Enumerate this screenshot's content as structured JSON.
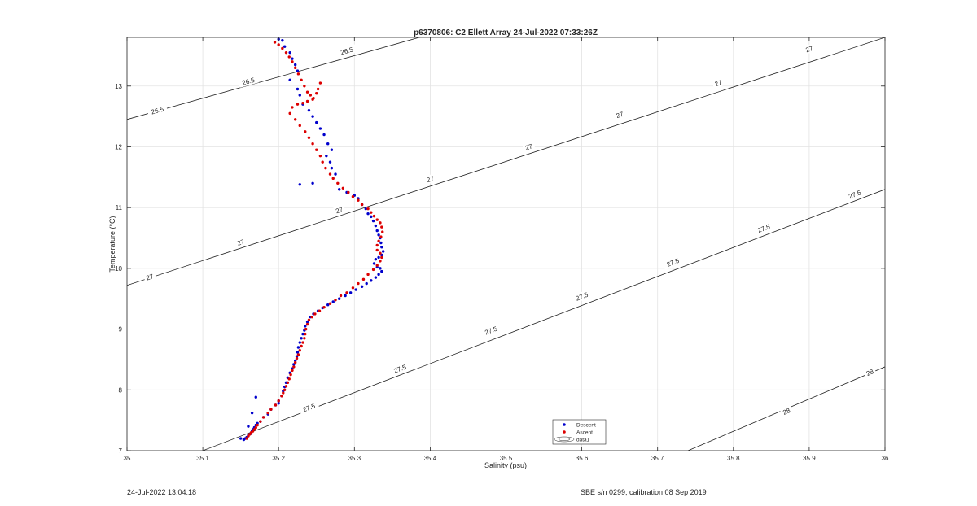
{
  "footer": {
    "left": "24-Jul-2022 13:04:18",
    "right": "SBE s/n 0299, calibration 08 Sep 2019"
  },
  "chart_data": {
    "type": "scatter",
    "title": "p6370806: C2 Ellett Array 24-Jul-2022 07:33:26Z",
    "xlabel": "Salinity (psu)",
    "ylabel": "Temperature (°C)",
    "xlim": [
      35,
      36
    ],
    "ylim": [
      7,
      13.8
    ],
    "xticks": [
      "35",
      "35.1",
      "35.2",
      "35.3",
      "35.4",
      "35.5",
      "35.6",
      "35.7",
      "35.8",
      "35.9",
      "36"
    ],
    "yticks": [
      "7",
      "8",
      "9",
      "10",
      "11",
      "12",
      "13"
    ],
    "grid": true,
    "legend": {
      "position": "bottom-center",
      "entries": [
        "Descent",
        "Ascent",
        "data1"
      ]
    },
    "colors": {
      "descent": "#0000cc",
      "ascent": "#dd0000",
      "contour": "#222222",
      "grid": "#e3e3e3"
    },
    "contours": {
      "levels": [
        {
          "value": "26.5",
          "x": [
            35.0,
            35.4
          ],
          "y": [
            12.45,
            13.85
          ]
        },
        {
          "value": "27",
          "x": [
            35.0,
            36.0
          ],
          "y": [
            9.72,
            13.8
          ]
        },
        {
          "value": "27.5",
          "x": [
            35.1,
            36.0
          ],
          "y": [
            7.0,
            11.3
          ]
        },
        {
          "value": "28",
          "x": [
            35.74,
            36.0
          ],
          "y": [
            7.0,
            8.38
          ]
        }
      ],
      "labels": [
        {
          "text": "26.5",
          "x": 35.04,
          "y": 12.6
        },
        {
          "text": "26.5",
          "x": 35.16,
          "y": 13.08
        },
        {
          "text": "26.5",
          "x": 35.29,
          "y": 13.58
        },
        {
          "text": "27",
          "x": 35.03,
          "y": 9.86
        },
        {
          "text": "27",
          "x": 35.15,
          "y": 10.43
        },
        {
          "text": "27",
          "x": 35.28,
          "y": 10.96
        },
        {
          "text": "27",
          "x": 35.4,
          "y": 11.47
        },
        {
          "text": "27",
          "x": 35.53,
          "y": 12.0
        },
        {
          "text": "27",
          "x": 35.65,
          "y": 12.53
        },
        {
          "text": "27",
          "x": 35.78,
          "y": 13.05
        },
        {
          "text": "27",
          "x": 35.9,
          "y": 13.61
        },
        {
          "text": "27.5",
          "x": 35.24,
          "y": 7.71
        },
        {
          "text": "27.5",
          "x": 35.36,
          "y": 8.35
        },
        {
          "text": "27.5",
          "x": 35.48,
          "y": 8.98
        },
        {
          "text": "27.5",
          "x": 35.6,
          "y": 9.54
        },
        {
          "text": "27.5",
          "x": 35.72,
          "y": 10.1
        },
        {
          "text": "27.5",
          "x": 35.84,
          "y": 10.66
        },
        {
          "text": "27.5",
          "x": 35.96,
          "y": 11.22
        },
        {
          "text": "28",
          "x": 35.87,
          "y": 7.65
        },
        {
          "text": "28",
          "x": 35.98,
          "y": 8.29
        }
      ]
    },
    "series": [
      {
        "name": "Descent",
        "x": [
          35.2,
          35.205,
          35.208,
          35.215,
          35.218,
          35.222,
          35.225,
          35.215,
          35.225,
          35.228,
          35.232,
          35.24,
          35.245,
          35.25,
          35.255,
          35.26,
          35.265,
          35.27,
          35.263,
          35.268,
          35.27,
          35.275,
          35.245,
          35.228,
          35.28,
          35.29,
          35.3,
          35.305,
          35.31,
          35.315,
          35.318,
          35.322,
          35.325,
          35.328,
          35.33,
          35.332,
          35.334,
          35.335,
          35.336,
          35.338,
          35.336,
          35.332,
          35.328,
          35.326,
          35.33,
          35.334,
          35.336,
          35.332,
          35.328,
          35.322,
          35.316,
          35.31,
          35.302,
          35.295,
          35.288,
          35.28,
          35.272,
          35.265,
          35.258,
          35.252,
          35.246,
          35.242,
          35.238,
          35.235,
          35.234,
          35.232,
          35.23,
          35.228,
          35.226,
          35.225,
          35.224,
          35.222,
          35.22,
          35.218,
          35.215,
          35.212,
          35.21,
          35.208,
          35.206,
          35.204,
          35.2,
          35.196,
          35.19,
          35.186,
          35.18,
          35.176,
          35.172,
          35.17,
          35.168,
          35.166,
          35.165,
          35.163,
          35.16,
          35.158,
          35.156,
          35.154,
          35.15,
          35.16,
          35.165,
          35.17,
          35.2
        ],
        "y": [
          13.77,
          13.75,
          13.65,
          13.55,
          13.45,
          13.35,
          13.25,
          13.1,
          12.95,
          12.85,
          12.7,
          12.6,
          12.5,
          12.4,
          12.3,
          12.2,
          12.05,
          11.95,
          11.85,
          11.75,
          11.65,
          11.55,
          11.4,
          11.38,
          11.3,
          11.25,
          11.2,
          11.15,
          11.05,
          10.98,
          10.9,
          10.85,
          10.78,
          10.7,
          10.62,
          10.55,
          10.5,
          10.42,
          10.35,
          10.28,
          10.22,
          10.18,
          10.15,
          10.08,
          10.02,
          10.0,
          9.95,
          9.9,
          9.85,
          9.8,
          9.75,
          9.7,
          9.65,
          9.6,
          9.55,
          9.5,
          9.45,
          9.4,
          9.35,
          9.3,
          9.25,
          9.2,
          9.12,
          9.05,
          8.98,
          8.92,
          8.85,
          8.78,
          8.7,
          8.62,
          8.55,
          8.48,
          8.42,
          8.35,
          8.28,
          8.2,
          8.12,
          8.05,
          7.98,
          7.9,
          7.82,
          7.75,
          7.68,
          7.6,
          7.55,
          7.48,
          7.45,
          7.42,
          7.38,
          7.35,
          7.32,
          7.28,
          7.25,
          7.22,
          7.2,
          7.18,
          7.2,
          7.4,
          7.62,
          7.88,
          7.78
        ]
      },
      {
        "name": "Ascent",
        "x": [
          35.195,
          35.2,
          35.205,
          35.21,
          35.214,
          35.218,
          35.222,
          35.226,
          35.23,
          35.234,
          35.238,
          35.242,
          35.246,
          35.25,
          35.252,
          35.255,
          35.245,
          35.238,
          35.232,
          35.225,
          35.218,
          35.215,
          35.222,
          35.228,
          35.235,
          35.24,
          35.245,
          35.25,
          35.255,
          35.258,
          35.262,
          35.268,
          35.272,
          35.278,
          35.285,
          35.292,
          35.298,
          35.305,
          35.31,
          35.318,
          35.322,
          35.326,
          35.33,
          35.334,
          35.336,
          35.337,
          35.335,
          35.332,
          35.33,
          35.33,
          35.334,
          35.336,
          35.334,
          35.33,
          35.325,
          35.318,
          35.312,
          35.305,
          35.298,
          35.29,
          35.282,
          35.275,
          35.268,
          35.26,
          35.254,
          35.248,
          35.244,
          35.24,
          35.238,
          35.236,
          35.235,
          35.234,
          35.232,
          35.23,
          35.228,
          35.226,
          35.224,
          35.222,
          35.22,
          35.218,
          35.216,
          35.214,
          35.212,
          35.21,
          35.208,
          35.206,
          35.204,
          35.2,
          35.196,
          35.19,
          35.186,
          35.18,
          35.176,
          35.172,
          35.17,
          35.168,
          35.166,
          35.164,
          35.162,
          35.16,
          35.158
        ],
        "y": [
          13.72,
          13.68,
          13.62,
          13.55,
          13.48,
          13.4,
          13.3,
          13.2,
          13.1,
          13.0,
          12.9,
          12.85,
          12.8,
          12.88,
          12.95,
          13.05,
          12.78,
          12.75,
          12.72,
          12.7,
          12.65,
          12.55,
          12.45,
          12.35,
          12.25,
          12.15,
          12.05,
          11.95,
          11.85,
          11.75,
          11.65,
          11.55,
          11.48,
          11.4,
          11.32,
          11.25,
          11.18,
          11.12,
          11.05,
          10.98,
          10.92,
          10.86,
          10.8,
          10.75,
          10.68,
          10.6,
          10.52,
          10.45,
          10.38,
          10.3,
          10.25,
          10.18,
          10.12,
          10.05,
          9.98,
          9.9,
          9.82,
          9.75,
          9.68,
          9.6,
          9.55,
          9.48,
          9.42,
          9.36,
          9.3,
          9.25,
          9.2,
          9.15,
          9.08,
          9.0,
          8.92,
          8.85,
          8.78,
          8.72,
          8.65,
          8.58,
          8.52,
          8.45,
          8.38,
          8.32,
          8.25,
          8.18,
          8.12,
          8.06,
          8.0,
          7.95,
          7.9,
          7.82,
          7.75,
          7.68,
          7.62,
          7.55,
          7.48,
          7.42,
          7.38,
          7.35,
          7.32,
          7.3,
          7.27,
          7.24,
          7.2
        ]
      }
    ]
  }
}
